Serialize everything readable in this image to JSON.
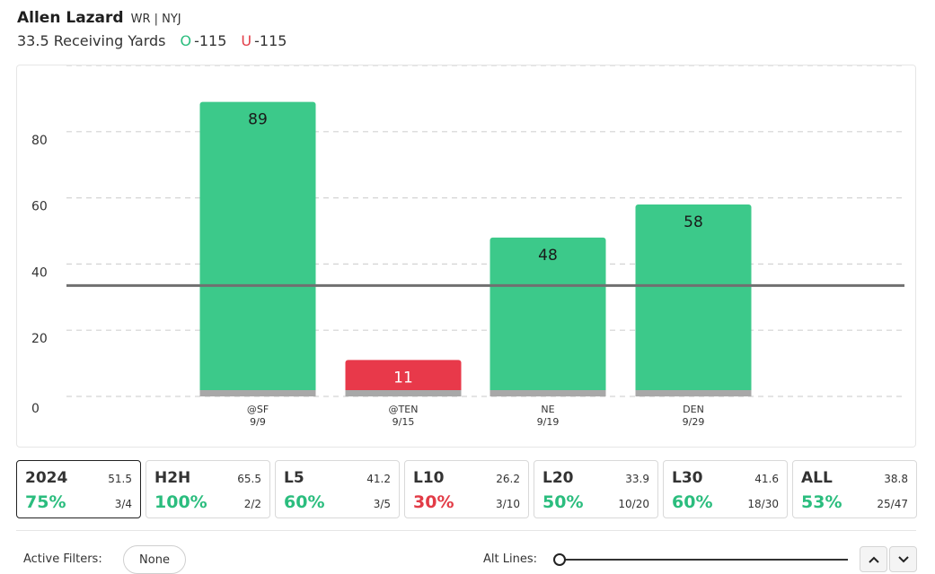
{
  "player": {
    "name": "Allen Lazard",
    "meta": "WR | NYJ"
  },
  "prop": {
    "line_text": "33.5 Receiving Yards",
    "over_symbol": "O",
    "over_odds": "-115",
    "under_symbol": "U",
    "under_odds": "-115"
  },
  "colors": {
    "hit": "#3cc98a",
    "miss": "#e8394a",
    "base": "#a8a8a8",
    "line": "#707070",
    "grid": "#d4d4d4"
  },
  "chart_data": {
    "type": "bar",
    "categories": [
      "@SF",
      "@TEN",
      "NE",
      "DEN"
    ],
    "dates": [
      "9/9",
      "9/15",
      "9/19",
      "9/29"
    ],
    "values": [
      89,
      11,
      48,
      58
    ],
    "threshold": 33.5,
    "y_ticks": [
      0,
      20,
      40,
      60,
      80
    ],
    "ylim": [
      0,
      100
    ],
    "grid": true
  },
  "splits": [
    {
      "label": "2024",
      "avg": "51.5",
      "pct": "75%",
      "frac": "3/4",
      "status": "good",
      "active": true
    },
    {
      "label": "H2H",
      "avg": "65.5",
      "pct": "100%",
      "frac": "2/2",
      "status": "good",
      "active": false
    },
    {
      "label": "L5",
      "avg": "41.2",
      "pct": "60%",
      "frac": "3/5",
      "status": "good",
      "active": false
    },
    {
      "label": "L10",
      "avg": "26.2",
      "pct": "30%",
      "frac": "3/10",
      "status": "bad",
      "active": false
    },
    {
      "label": "L20",
      "avg": "33.9",
      "pct": "50%",
      "frac": "10/20",
      "status": "good",
      "active": false
    },
    {
      "label": "L30",
      "avg": "41.6",
      "pct": "60%",
      "frac": "18/30",
      "status": "good",
      "active": false
    },
    {
      "label": "ALL",
      "avg": "38.8",
      "pct": "53%",
      "frac": "25/47",
      "status": "good",
      "active": false
    }
  ],
  "footer": {
    "filters_label": "Active Filters:",
    "filters_value": "None",
    "alt_lines_label": "Alt Lines:",
    "up_icon": "chevron-up-icon",
    "down_icon": "chevron-down-icon"
  }
}
